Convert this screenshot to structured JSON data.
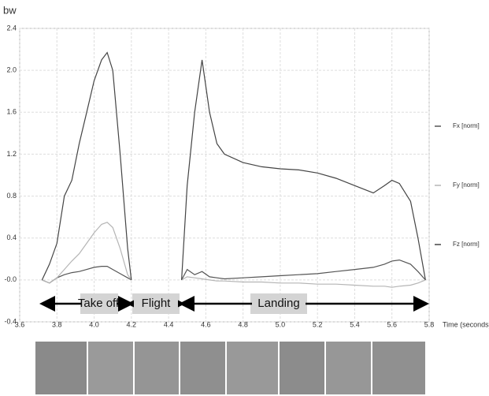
{
  "chart_data": {
    "type": "line",
    "y_label": "bw",
    "x_label": "Time (seconds)",
    "xlim": [
      3.6,
      5.8
    ],
    "ylim": [
      -0.4,
      2.4
    ],
    "xticks": [
      3.6,
      3.8,
      {
        "value": 4,
        "label": "4.0"
      },
      4.2,
      4.4,
      4.6,
      4.8,
      {
        "value": 5,
        "label": "5.0"
      },
      5.2,
      5.4,
      5.6,
      5.8
    ],
    "yticks": [
      -0.4,
      {
        "value": 0,
        "label": "-0.0"
      },
      0.4,
      0.8,
      1.2,
      1.6,
      {
        "value": 2,
        "label": "2.0"
      },
      2.4
    ],
    "grid": true,
    "legend": "right",
    "x": [
      3.72,
      3.76,
      3.8,
      3.84,
      3.88,
      3.92,
      3.96,
      4.0,
      4.04,
      4.07,
      4.1,
      4.14,
      4.18,
      4.2,
      4.3,
      4.47,
      4.5,
      4.54,
      4.58,
      4.62,
      4.66,
      4.7,
      4.8,
      4.9,
      5.0,
      5.1,
      5.2,
      5.3,
      5.4,
      5.5,
      5.56,
      5.6,
      5.64,
      5.7,
      5.74,
      5.78
    ],
    "series": [
      {
        "name": "Fx [norm]",
        "color": "#555555",
        "values": [
          0,
          -0.03,
          0.02,
          0.05,
          0.07,
          0.08,
          0.1,
          0.12,
          0.13,
          0.13,
          0.1,
          0.06,
          0.02,
          0,
          null,
          0,
          0.1,
          0.05,
          0.08,
          0.03,
          0.02,
          0.01,
          0.02,
          0.03,
          0.04,
          0.05,
          0.06,
          0.08,
          0.1,
          0.12,
          0.15,
          0.18,
          0.19,
          0.15,
          0.08,
          0
        ]
      },
      {
        "name": "Fy [norm]",
        "color": "#b5b5b5",
        "values": [
          0,
          -0.03,
          0.02,
          0.1,
          0.18,
          0.25,
          0.35,
          0.45,
          0.53,
          0.55,
          0.5,
          0.3,
          0.05,
          0,
          null,
          0,
          0.03,
          0.02,
          0.01,
          0,
          -0.01,
          -0.01,
          -0.02,
          -0.02,
          -0.03,
          -0.03,
          -0.04,
          -0.04,
          -0.05,
          -0.06,
          -0.06,
          -0.07,
          -0.06,
          -0.05,
          -0.03,
          0
        ]
      },
      {
        "name": "Fz [norm]",
        "color": "#444444",
        "values": [
          0,
          0.15,
          0.35,
          0.8,
          0.95,
          1.3,
          1.6,
          1.9,
          2.1,
          2.17,
          2.0,
          1.2,
          0.3,
          0,
          null,
          0,
          0.9,
          1.6,
          2.1,
          1.6,
          1.3,
          1.2,
          1.12,
          1.08,
          1.06,
          1.05,
          1.02,
          0.97,
          0.9,
          0.83,
          0.9,
          0.95,
          0.92,
          0.75,
          0.4,
          0
        ]
      }
    ],
    "annotations": [
      "Take off",
      "Flight",
      "Landing"
    ]
  }
}
